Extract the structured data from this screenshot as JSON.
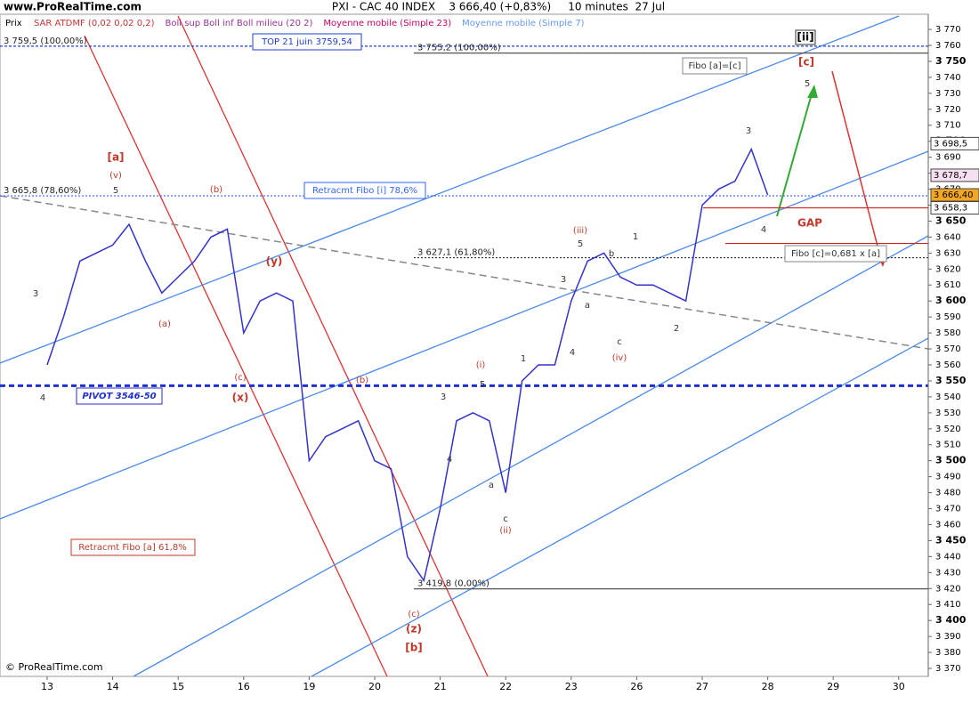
{
  "chart_data": {
    "type": "line",
    "site": "www.ProRealTime.com",
    "title": "PXI - CAC 40 INDEX    3 666,40 (+0,83%)     10 minutes  27 Jul",
    "footer": "© ProRealTime.com",
    "indicators": [
      {
        "name": "SAR ATDMF (0,02 0,02 0,2)",
        "color": "#cc3333"
      },
      {
        "name": "Boll sup Boll inf Boll milieu (20 2)",
        "color": "#993399"
      },
      {
        "name": "Moyenne mobile (Simple 23)",
        "color": "#cc0066"
      },
      {
        "name": "Moyenne mobile (Simple 7)",
        "color": "#6699ff"
      }
    ],
    "categories": [
      "13",
      null,
      null,
      null,
      "14",
      null,
      null,
      null,
      "15",
      null,
      null,
      null,
      "16",
      null,
      null,
      null,
      "19",
      null,
      null,
      null,
      "20",
      null,
      null,
      null,
      "21",
      null,
      null,
      null,
      "22",
      null,
      null,
      null,
      "23",
      null,
      null,
      null,
      "26",
      null,
      null,
      null,
      "27",
      null,
      null,
      null,
      "28",
      null,
      null,
      null,
      "29",
      null,
      null,
      null,
      "30",
      null,
      null,
      null
    ],
    "series": [
      {
        "name": "Prix",
        "color": "#3333cc",
        "values": [
          3560,
          3590,
          3625,
          3630,
          3635,
          3648,
          3625,
          3605,
          3615,
          3625,
          3640,
          3645,
          3580,
          3600,
          3605,
          3600,
          3500,
          3515,
          3520,
          3525,
          3500,
          3495,
          3440,
          3425,
          3470,
          3525,
          3530,
          3525,
          3480,
          3550,
          3560,
          3560,
          3600,
          3625,
          3630,
          3615,
          3610,
          3610,
          3605,
          3600,
          3660,
          3670,
          3675,
          3695,
          3666.4,
          null,
          null,
          null,
          null,
          null,
          null,
          null,
          null,
          null,
          null,
          null
        ]
      }
    ],
    "ylim": [
      3365,
      3779.5
    ],
    "yticks": [
      {
        "value": 3370,
        "label": "3 370"
      },
      {
        "value": 3380,
        "label": "3 380"
      },
      {
        "value": 3390,
        "label": "3 390"
      },
      {
        "value": 3400,
        "label": "3 400"
      },
      {
        "value": 3410,
        "label": "3 410"
      },
      {
        "value": 3420,
        "label": "3 420"
      },
      {
        "value": 3430,
        "label": "3 430"
      },
      {
        "value": 3440,
        "label": "3 440"
      },
      {
        "value": 3450,
        "label": "3 450"
      },
      {
        "value": 3460,
        "label": "3 460"
      },
      {
        "value": 3470,
        "label": "3 470"
      },
      {
        "value": 3480,
        "label": "3 480"
      },
      {
        "value": 3490,
        "label": "3 490"
      },
      {
        "value": 3500,
        "label": "3 500"
      },
      {
        "value": 3510,
        "label": "3 510"
      },
      {
        "value": 3520,
        "label": "3 520"
      },
      {
        "value": 3530,
        "label": "3 530"
      },
      {
        "value": 3540,
        "label": "3 540"
      },
      {
        "value": 3550,
        "label": "3 550"
      },
      {
        "value": 3560,
        "label": "3 560"
      },
      {
        "value": 3570,
        "label": "3 570"
      },
      {
        "value": 3580,
        "label": "3 580"
      },
      {
        "value": 3590,
        "label": "3 590"
      },
      {
        "value": 3600,
        "label": "3 600"
      },
      {
        "value": 3610,
        "label": "3 610"
      },
      {
        "value": 3620,
        "label": "3 620"
      },
      {
        "value": 3630,
        "label": "3 630"
      },
      {
        "value": 3640,
        "label": "3 640"
      },
      {
        "value": 3650,
        "label": "3 650"
      },
      {
        "value": 3660,
        "label": "3 660"
      },
      {
        "value": 3670,
        "label": "3 670"
      },
      {
        "value": 3680,
        "label": "3 680"
      },
      {
        "value": 3690,
        "label": "3 690"
      },
      {
        "value": 3700,
        "label": "3 700"
      },
      {
        "value": 3710,
        "label": "3 710"
      },
      {
        "value": 3720,
        "label": "3 720"
      },
      {
        "value": 3730,
        "label": "3 730"
      },
      {
        "value": 3740,
        "label": "3 740"
      },
      {
        "value": 3750,
        "label": "3 750"
      },
      {
        "value": 3760,
        "label": "3 760"
      },
      {
        "value": 3770,
        "label": "3 770"
      }
    ],
    "price_labels": [
      {
        "value": 3698.5,
        "label": "3 698,5",
        "color": "#ffffff"
      },
      {
        "value": 3678.7,
        "label": "3 678,7",
        "color": "#f6dff0"
      },
      {
        "value": 3666.4,
        "label": "3 666,40",
        "color": "#f5a623"
      },
      {
        "value": 3658.3,
        "label": "3 658,3",
        "color": "#ffffff"
      }
    ],
    "levels": [
      {
        "value": 3759.5,
        "label": "3 759,5 (100,00%)",
        "color": "#1f3fd0",
        "dash": "3,2",
        "from": "left"
      },
      {
        "value": 3755.2,
        "label": "3 755,2 (100,00%)",
        "color": "#555555",
        "dash": "",
        "from": "mid"
      },
      {
        "value": 3665.8,
        "label": "3 665,8 (78,60%)",
        "color": "#3366ff",
        "dash": "2,2",
        "from": "left"
      },
      {
        "value": 3627.1,
        "label": "3 627,1 (61,80%)",
        "color": "#333333",
        "dash": "2,2",
        "from": "mid"
      },
      {
        "value": 3419.8,
        "label": "3 419,8 (0,00%)",
        "color": "#555555",
        "dash": "",
        "from": "mid"
      },
      {
        "value": 3547,
        "color": "#1f2fd0",
        "dash": "6,4",
        "from": "left",
        "width": 3
      },
      {
        "value": 3658.3,
        "color": "#cc2222",
        "dash": "",
        "from": "gap"
      },
      {
        "value": 3636,
        "color": "#cc2222",
        "dash": "",
        "from": "gap2"
      }
    ],
    "annotations": [
      "[a]",
      "(v)",
      "5",
      "3",
      "4",
      "(a)",
      "(b)",
      "(c)",
      "(x)",
      "(y)",
      "(b)",
      "(z)",
      "[b]",
      "(c)",
      "(i)",
      "5",
      "3",
      "4",
      "a",
      "c",
      "(ii)",
      "1",
      "(iii)",
      "5",
      "3",
      "4",
      "a",
      "b",
      "c",
      "(iv)",
      "1",
      "2",
      "3",
      "4",
      "5",
      "[c]",
      "[ii]",
      "GAP",
      "Retracmt Fibo [i] 78,6%",
      "Retracmt Fibo [a] 61,8%",
      "Fibo [a]=[c]",
      "Fibo [c]=0,681 x [a]",
      "TOP 21 juin 3759,54",
      "PIVOT 3546-50"
    ]
  }
}
